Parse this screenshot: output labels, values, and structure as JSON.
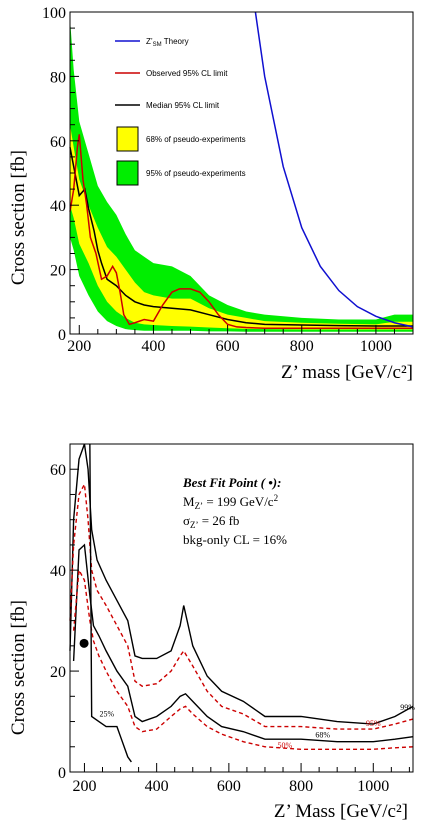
{
  "chart_data": [
    {
      "type": "line",
      "panel": "top",
      "xlabel": "Z’ mass [GeV/c²]",
      "ylabel": "Cross section [fb]",
      "xlim": [
        175,
        1100
      ],
      "ylim": [
        0,
        100
      ],
      "xticks": [
        200,
        400,
        600,
        800,
        1000
      ],
      "yticks": [
        0,
        20,
        40,
        60,
        80,
        100
      ],
      "colors": {
        "theory": "#1010d0",
        "observed": "#cc0000",
        "median": "#000000",
        "band68": "#ffff00",
        "band95": "#00ee00"
      },
      "legend": {
        "placement": "top-left",
        "theory": {
          "label": "Z’",
          "sub": "SM",
          "suffix": " Theory"
        },
        "observed": "Observed 95% CL limit",
        "median": "Median 95% CL limit",
        "band68": "68% of pseudo-experiments",
        "band95": "95% of pseudo-experiments"
      },
      "band95_upper": {
        "x": [
          175,
          185,
          200,
          225,
          250,
          275,
          300,
          325,
          350,
          375,
          400,
          450,
          500,
          550,
          600,
          650,
          700,
          800,
          900,
          1000,
          1050,
          1100
        ],
        "y": [
          98,
          82,
          66,
          56,
          46,
          41,
          37,
          31,
          26,
          24,
          22,
          21,
          18,
          12,
          9,
          7,
          6,
          5,
          4.5,
          4.5,
          6,
          6
        ]
      },
      "band95_lower": {
        "x": [
          175,
          185,
          200,
          225,
          250,
          275,
          300,
          325,
          350,
          375,
          400,
          450,
          500,
          550,
          600,
          650,
          700,
          800,
          900,
          1000,
          1050,
          1100
        ],
        "y": [
          30,
          26,
          18,
          12,
          7,
          4,
          2.5,
          1.5,
          1.2,
          1.0,
          1.0,
          1.0,
          1.0,
          0.8,
          0.8,
          0.7,
          0.7,
          0.7,
          0.7,
          0.7,
          0.7,
          0.7
        ]
      },
      "band68_upper": {
        "x": [
          175,
          185,
          200,
          225,
          250,
          275,
          300,
          325,
          350,
          375,
          400,
          450,
          500,
          550,
          600,
          650,
          700,
          800,
          900,
          1000,
          1050,
          1100
        ],
        "y": [
          65,
          58,
          48,
          40,
          33,
          27,
          24,
          20,
          16,
          13,
          12,
          11,
          11,
          8,
          6,
          5,
          4,
          3.5,
          3.2,
          3.0,
          3.8,
          3.8
        ]
      },
      "band68_lower": {
        "x": [
          175,
          185,
          200,
          225,
          250,
          275,
          300,
          325,
          350,
          375,
          400,
          450,
          500,
          550,
          600,
          650,
          700,
          800,
          900,
          1000,
          1050,
          1100
        ],
        "y": [
          40,
          36,
          28,
          22,
          15,
          10,
          7,
          5,
          3.5,
          3.0,
          2.8,
          2.5,
          2.3,
          2.0,
          1.8,
          1.6,
          1.5,
          1.4,
          1.4,
          1.4,
          1.4,
          1.4
        ]
      },
      "series": [
        {
          "key": "median",
          "x": [
            175,
            185,
            200,
            215,
            225,
            240,
            250,
            260,
            275,
            300,
            325,
            350,
            375,
            400,
            450,
            500,
            550,
            600,
            650,
            700,
            800,
            900,
            1000,
            1050,
            1100
          ],
          "y": [
            58,
            52,
            43,
            45,
            39,
            32,
            26,
            22,
            17,
            15,
            12,
            10,
            9,
            8.5,
            8,
            7.5,
            6,
            4.5,
            3.5,
            3,
            2.8,
            2.6,
            2.5,
            2.5,
            2.5
          ]
        },
        {
          "key": "observed",
          "x": [
            175,
            185,
            195,
            200,
            210,
            220,
            230,
            245,
            260,
            275,
            290,
            300,
            310,
            320,
            335,
            350,
            375,
            400,
            425,
            450,
            470,
            490,
            500,
            525,
            550,
            575,
            600,
            625,
            650,
            700,
            800,
            900,
            1000,
            1100
          ],
          "y": [
            38,
            45,
            58,
            62,
            48,
            40,
            30,
            25,
            17,
            18,
            21,
            19,
            13,
            6,
            3,
            3.5,
            4.5,
            4,
            9,
            13,
            14,
            14,
            14,
            13,
            10,
            6,
            3,
            2.2,
            2,
            1.8,
            1.8,
            1.8,
            1.8,
            1.8
          ]
        },
        {
          "key": "theory",
          "x": [
            675,
            700,
            750,
            800,
            850,
            900,
            950,
            1000,
            1050,
            1100
          ],
          "y": [
            100,
            80,
            52,
            33,
            21,
            13.5,
            8.5,
            5.5,
            3.5,
            2.2
          ]
        }
      ]
    },
    {
      "type": "line",
      "panel": "bottom",
      "xlabel": "Z’ Mass [GeV/c²]",
      "ylabel": "Cross section [fb]",
      "xlim": [
        160,
        1110
      ],
      "ylim": [
        0,
        65
      ],
      "xticks": [
        200,
        400,
        600,
        800,
        1000
      ],
      "yticks": [
        0,
        20,
        40,
        60
      ],
      "annotation": {
        "title": "Best Fit Point ( •):",
        "mass_label": "M",
        "mass_sub": "Z’",
        "mass_value": " = 199 GeV/c",
        "sigma_label": "σ",
        "sigma_sub": "Z’",
        "sigma_value": " = 26 fb",
        "bkg": "bkg-only CL = 16%"
      },
      "best_fit": {
        "x": 199,
        "y": 25.5
      },
      "contour_labels": {
        "c25": "25%",
        "c68": "68%",
        "c95": "95%",
        "c99": "99%",
        "c50": "50%"
      },
      "series": [
        {
          "key": "c99",
          "style": "solid",
          "x": [
            160,
            170,
            185,
            200,
            210,
            220,
            235,
            260,
            290,
            320,
            340,
            360,
            400,
            440,
            465,
            475,
            500,
            540,
            580,
            640,
            700,
            800,
            900,
            1000,
            1060,
            1110
          ],
          "y": [
            24,
            50,
            62,
            66,
            60,
            48,
            42,
            38,
            34,
            30,
            23,
            22.5,
            22.5,
            24,
            29,
            33,
            25,
            19,
            16,
            14,
            11,
            11,
            10,
            9.5,
            11,
            13
          ]
        },
        {
          "key": "c95",
          "style": "dashed",
          "x": [
            160,
            170,
            185,
            200,
            210,
            220,
            235,
            260,
            290,
            320,
            340,
            360,
            400,
            440,
            465,
            475,
            500,
            540,
            580,
            640,
            700,
            800,
            900,
            1000,
            1060,
            1110
          ],
          "y": [
            30,
            45,
            55,
            57,
            50,
            40,
            36,
            33,
            29,
            25,
            18,
            17,
            17.5,
            20,
            23,
            24,
            21,
            16,
            13,
            11.5,
            9,
            9,
            8.5,
            8.5,
            9.5,
            10.5
          ]
        },
        {
          "key": "c68",
          "style": "solid",
          "x": [
            170,
            185,
            200,
            215,
            225,
            240,
            260,
            290,
            320,
            340,
            360,
            400,
            440,
            465,
            480,
            500,
            540,
            580,
            640,
            700,
            800,
            900,
            1000,
            1060,
            1110
          ],
          "y": [
            22,
            44,
            45,
            35,
            29,
            27,
            24,
            20,
            17,
            11,
            10,
            11,
            13,
            15,
            15.5,
            14,
            11,
            9,
            8,
            6.5,
            6.5,
            6,
            6,
            6.5,
            7
          ]
        },
        {
          "key": "c50",
          "style": "dashed",
          "x": [
            170,
            185,
            200,
            215,
            225,
            240,
            260,
            290,
            320,
            340,
            360,
            400,
            440,
            465,
            480,
            500,
            540,
            580,
            640,
            700,
            800,
            900,
            1000,
            1060,
            1110
          ],
          "y": [
            28,
            40,
            38,
            30,
            26,
            23,
            20,
            16,
            13,
            9,
            8,
            8.5,
            11,
            12.5,
            13,
            11.5,
            9,
            7.5,
            6,
            5,
            4.5,
            4.5,
            4.5,
            4.8,
            5
          ]
        },
        {
          "key": "c25",
          "style": "solid",
          "x": [
            215,
            220,
            240,
            260,
            290,
            300,
            320,
            330
          ],
          "y": [
            65,
            11,
            10,
            9,
            9,
            7,
            3,
            2
          ]
        }
      ]
    }
  ]
}
